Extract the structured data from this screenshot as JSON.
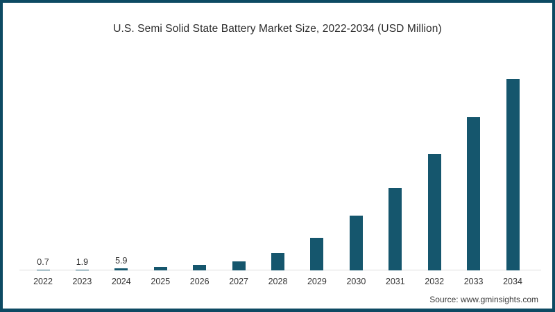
{
  "frame": {
    "border_color": "#0d4a63",
    "background": "#ffffff"
  },
  "chart_data": {
    "type": "bar",
    "title": "U.S. Semi Solid State Battery Market Size, 2022-2034 (USD Million)",
    "categories": [
      "2022",
      "2023",
      "2024",
      "2025",
      "2026",
      "2027",
      "2028",
      "2029",
      "2030",
      "2031",
      "2032",
      "2033",
      "2034"
    ],
    "values": [
      0.7,
      1.9,
      5.9,
      10,
      16,
      26,
      49,
      92,
      155,
      234,
      330,
      435,
      543
    ],
    "bar_labels": [
      "0.7",
      "1.9",
      "5.9",
      "",
      "",
      "",
      "",
      "",
      "",
      "",
      "",
      "",
      ""
    ],
    "xlabel": "",
    "ylabel": "",
    "ylim": [
      0,
      600
    ],
    "grid": false,
    "legend": "none",
    "bar_color": "#15566d",
    "axis_line_color": "#dcdcdc"
  },
  "source": {
    "text": "Source: www.gminsights.com"
  }
}
